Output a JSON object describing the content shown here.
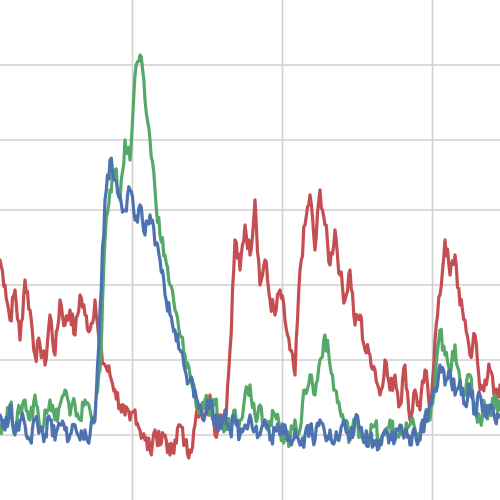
{
  "chart_data": {
    "type": "line",
    "title": "",
    "xlabel": "",
    "ylabel": "",
    "grid": true,
    "legend": "none",
    "xlim": [
      0,
      1000
    ],
    "ylim": [
      0,
      1
    ],
    "x_gridlines": [
      265,
      565,
      865
    ],
    "y_gridlines": [
      0.13,
      0.28,
      0.43,
      0.58,
      0.72,
      0.87
    ],
    "series": [
      {
        "color": "#c44e52",
        "x": [
          0,
          10,
          20,
          30,
          40,
          50,
          60,
          70,
          80,
          90,
          100,
          110,
          120,
          130,
          140,
          150,
          160,
          170,
          180,
          190,
          200,
          210,
          220,
          230,
          240,
          250,
          260,
          270,
          280,
          290,
          300,
          310,
          320,
          330,
          340,
          350,
          360,
          370,
          380,
          390,
          400,
          410,
          420,
          430,
          440,
          450,
          460,
          470,
          480,
          490,
          500,
          510,
          520,
          530,
          540,
          550,
          560,
          570,
          580,
          590,
          600,
          610,
          620,
          630,
          640,
          650,
          660,
          670,
          680,
          690,
          700,
          710,
          720,
          730,
          740,
          750,
          760,
          770,
          780,
          790,
          800,
          810,
          820,
          830,
          840,
          850,
          860,
          870,
          880,
          890,
          900,
          910,
          920,
          930,
          940,
          950,
          960,
          970,
          980,
          990,
          1000
        ],
        "values": [
          0.48,
          0.43,
          0.36,
          0.42,
          0.32,
          0.44,
          0.38,
          0.29,
          0.31,
          0.27,
          0.37,
          0.29,
          0.4,
          0.35,
          0.38,
          0.33,
          0.41,
          0.37,
          0.34,
          0.4,
          0.29,
          0.27,
          0.25,
          0.22,
          0.19,
          0.17,
          0.16,
          0.18,
          0.14,
          0.12,
          0.1,
          0.14,
          0.11,
          0.13,
          0.09,
          0.12,
          0.15,
          0.11,
          0.1,
          0.15,
          0.19,
          0.17,
          0.21,
          0.13,
          0.17,
          0.15,
          0.3,
          0.52,
          0.46,
          0.55,
          0.49,
          0.6,
          0.43,
          0.48,
          0.4,
          0.37,
          0.42,
          0.36,
          0.3,
          0.25,
          0.46,
          0.55,
          0.61,
          0.5,
          0.62,
          0.55,
          0.47,
          0.54,
          0.45,
          0.4,
          0.46,
          0.35,
          0.37,
          0.3,
          0.29,
          0.26,
          0.21,
          0.28,
          0.22,
          0.25,
          0.19,
          0.27,
          0.16,
          0.22,
          0.18,
          0.26,
          0.18,
          0.32,
          0.41,
          0.52,
          0.45,
          0.49,
          0.39,
          0.36,
          0.29,
          0.33,
          0.22,
          0.24,
          0.26,
          0.2,
          0.23
        ]
      },
      {
        "color": "#55a868",
        "x": [
          0,
          10,
          20,
          30,
          40,
          50,
          60,
          70,
          80,
          90,
          100,
          110,
          120,
          130,
          140,
          150,
          160,
          170,
          180,
          190,
          200,
          210,
          220,
          230,
          240,
          250,
          260,
          270,
          280,
          290,
          300,
          310,
          320,
          330,
          340,
          350,
          360,
          370,
          380,
          390,
          400,
          410,
          420,
          430,
          440,
          450,
          460,
          470,
          480,
          490,
          500,
          510,
          520,
          530,
          540,
          550,
          560,
          570,
          580,
          590,
          600,
          610,
          620,
          630,
          640,
          650,
          660,
          670,
          680,
          690,
          700,
          710,
          720,
          730,
          740,
          750,
          760,
          770,
          780,
          790,
          800,
          810,
          820,
          830,
          840,
          850,
          860,
          870,
          880,
          890,
          900,
          910,
          920,
          930,
          940,
          950,
          960,
          970,
          980,
          990,
          1000
        ],
        "values": [
          0.15,
          0.16,
          0.19,
          0.14,
          0.18,
          0.2,
          0.16,
          0.21,
          0.14,
          0.18,
          0.2,
          0.16,
          0.19,
          0.22,
          0.17,
          0.19,
          0.16,
          0.2,
          0.18,
          0.17,
          0.26,
          0.52,
          0.62,
          0.66,
          0.6,
          0.72,
          0.68,
          0.85,
          0.89,
          0.8,
          0.72,
          0.62,
          0.53,
          0.49,
          0.43,
          0.38,
          0.33,
          0.29,
          0.25,
          0.21,
          0.18,
          0.2,
          0.17,
          0.19,
          0.16,
          0.14,
          0.15,
          0.18,
          0.16,
          0.21,
          0.23,
          0.17,
          0.19,
          0.16,
          0.15,
          0.17,
          0.14,
          0.13,
          0.12,
          0.16,
          0.14,
          0.22,
          0.25,
          0.21,
          0.28,
          0.33,
          0.27,
          0.22,
          0.18,
          0.15,
          0.13,
          0.16,
          0.14,
          0.12,
          0.13,
          0.15,
          0.11,
          0.13,
          0.16,
          0.12,
          0.14,
          0.13,
          0.15,
          0.14,
          0.13,
          0.17,
          0.16,
          0.23,
          0.34,
          0.29,
          0.25,
          0.31,
          0.24,
          0.21,
          0.25,
          0.18,
          0.16,
          0.19,
          0.17,
          0.21,
          0.18
        ]
      },
      {
        "color": "#4c72b0",
        "x": [
          0,
          10,
          20,
          30,
          40,
          50,
          60,
          70,
          80,
          90,
          100,
          110,
          120,
          130,
          140,
          150,
          160,
          170,
          180,
          190,
          200,
          210,
          220,
          230,
          240,
          250,
          260,
          270,
          280,
          290,
          300,
          310,
          320,
          330,
          340,
          350,
          360,
          370,
          380,
          390,
          400,
          410,
          420,
          430,
          440,
          450,
          460,
          470,
          480,
          490,
          500,
          510,
          520,
          530,
          540,
          550,
          560,
          570,
          580,
          590,
          600,
          610,
          620,
          630,
          640,
          650,
          660,
          670,
          680,
          690,
          700,
          710,
          720,
          730,
          740,
          750,
          760,
          770,
          780,
          790,
          800,
          810,
          820,
          830,
          840,
          850,
          860,
          870,
          880,
          890,
          900,
          910,
          920,
          930,
          940,
          950,
          960,
          970,
          980,
          990,
          1000
        ],
        "values": [
          0.17,
          0.14,
          0.19,
          0.13,
          0.16,
          0.15,
          0.12,
          0.16,
          0.14,
          0.13,
          0.16,
          0.12,
          0.15,
          0.14,
          0.13,
          0.15,
          0.12,
          0.14,
          0.13,
          0.16,
          0.38,
          0.6,
          0.68,
          0.64,
          0.61,
          0.58,
          0.62,
          0.56,
          0.59,
          0.53,
          0.57,
          0.51,
          0.48,
          0.41,
          0.37,
          0.34,
          0.3,
          0.26,
          0.24,
          0.22,
          0.19,
          0.17,
          0.2,
          0.16,
          0.15,
          0.18,
          0.14,
          0.16,
          0.13,
          0.15,
          0.17,
          0.14,
          0.13,
          0.16,
          0.12,
          0.14,
          0.13,
          0.15,
          0.12,
          0.14,
          0.11,
          0.13,
          0.15,
          0.12,
          0.16,
          0.13,
          0.14,
          0.12,
          0.13,
          0.15,
          0.12,
          0.16,
          0.14,
          0.12,
          0.13,
          0.11,
          0.12,
          0.14,
          0.13,
          0.12,
          0.15,
          0.13,
          0.11,
          0.14,
          0.12,
          0.16,
          0.19,
          0.22,
          0.27,
          0.23,
          0.26,
          0.21,
          0.24,
          0.19,
          0.22,
          0.18,
          0.21,
          0.17,
          0.19,
          0.16,
          0.17
        ]
      }
    ]
  }
}
